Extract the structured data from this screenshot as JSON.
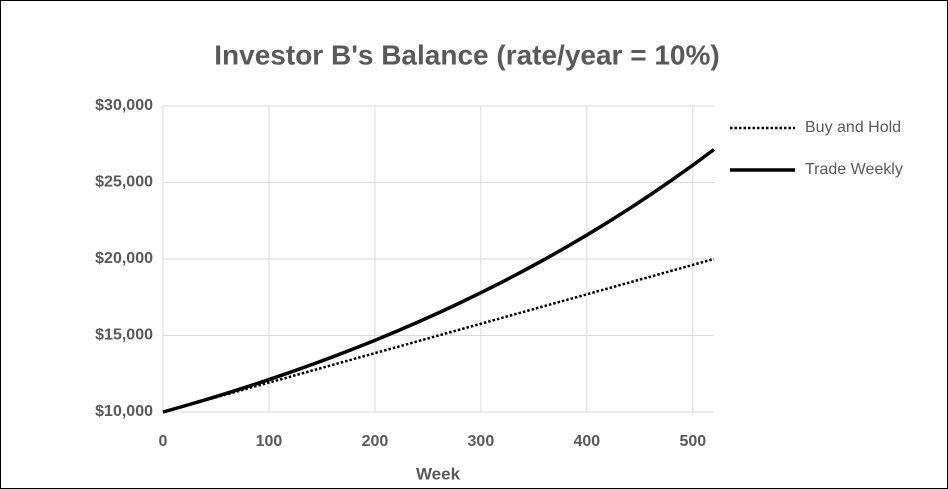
{
  "chart_data": {
    "type": "line",
    "title": "Investor B's Balance (rate/year = 10%)",
    "x_label": "Week",
    "x": [
      0,
      20,
      40,
      60,
      80,
      100,
      120,
      140,
      160,
      180,
      200,
      220,
      240,
      260,
      280,
      300,
      320,
      340,
      360,
      380,
      400,
      420,
      440,
      460,
      480,
      500,
      520
    ],
    "series": [
      {
        "name": "Buy and Hold",
        "color": "#000000",
        "dash": "dotted",
        "values": [
          10000,
          10385,
          10769,
          11154,
          11538,
          11923,
          12308,
          12692,
          13077,
          13462,
          13846,
          14231,
          14615,
          15000,
          15385,
          15769,
          16154,
          16538,
          16923,
          17308,
          17692,
          18077,
          18462,
          18846,
          19231,
          19615,
          20000
        ]
      },
      {
        "name": "Trade Weekly",
        "color": "#000000",
        "dash": "solid",
        "values": [
          10000,
          10392,
          10799,
          11222,
          11661,
          12118,
          12593,
          13086,
          13599,
          14132,
          14685,
          15260,
          15858,
          16479,
          17125,
          17796,
          18493,
          19217,
          19970,
          20752,
          21565,
          22410,
          23288,
          24200,
          25148,
          26133,
          27156
        ]
      }
    ],
    "xlim": [
      0,
      520
    ],
    "xticks": [
      0,
      100,
      200,
      300,
      400,
      500
    ],
    "ylim": [
      10000,
      30000
    ],
    "yticks": [
      {
        "value": 10000,
        "label": "$10,000"
      },
      {
        "value": 15000,
        "label": "$15,000"
      },
      {
        "value": 20000,
        "label": "$20,000"
      },
      {
        "value": 25000,
        "label": "$25,000"
      },
      {
        "value": 30000,
        "label": "$30,000"
      }
    ],
    "grid": true,
    "legend": "right"
  }
}
